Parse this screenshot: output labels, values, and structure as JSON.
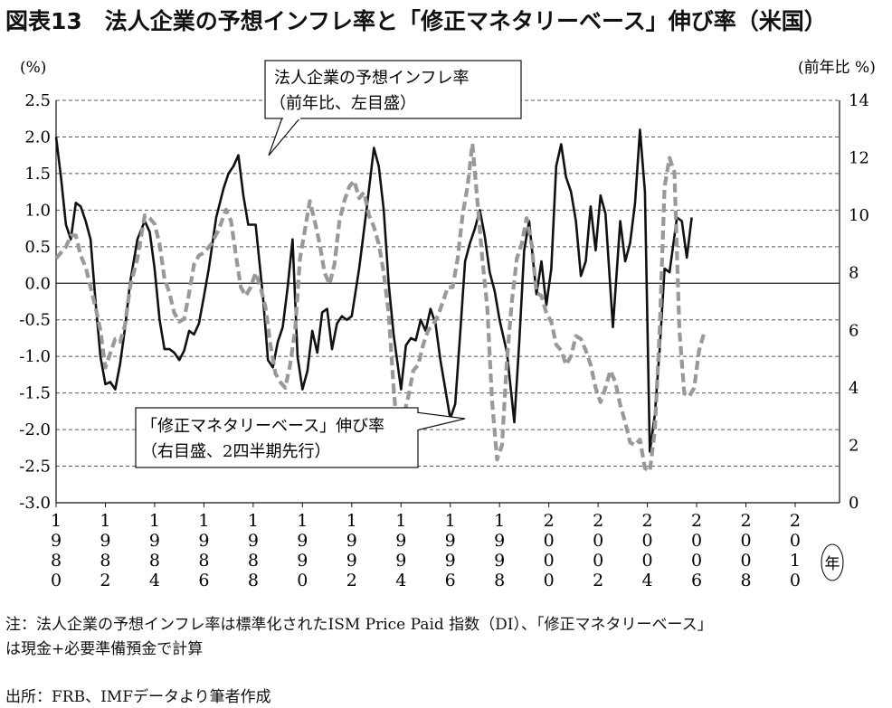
{
  "title": "図表13　法人企業の予想インフレ率と「修正マネタリーベース」伸び率（米国）",
  "left_unit": "(%)",
  "right_unit": "(前年比 %)",
  "year_unit": "年",
  "note_line1": "注：法人企業の予想インフレ率は標準化されたISM Price Paid 指数（DI）、「修正マネタリーベース」",
  "note_line2": "は現金+必要準備預金で計算",
  "source": "出所：FRB、IMFデータより筆者作成",
  "colors": {
    "series1": "#111111",
    "series2": "#999999",
    "grid": "#555555"
  },
  "chart_data": {
    "type": "line",
    "title": "法人企業の予想インフレ率と「修正マネタリーベース」伸び率（米国）",
    "x_ticks": [
      "1980",
      "1982",
      "1984",
      "1986",
      "1988",
      "1990",
      "1992",
      "1994",
      "1996",
      "1998",
      "2000",
      "2002",
      "2004",
      "2006",
      "2008",
      "2010"
    ],
    "xlim": [
      1980,
      2011.8
    ],
    "y_left": {
      "label": "(%)",
      "lim": [
        -3.0,
        2.5
      ],
      "ticks": [
        2.5,
        2.0,
        1.5,
        1.0,
        0.5,
        0.0,
        -0.5,
        -1.0,
        -1.5,
        -2.0,
        -2.5,
        -3.0
      ]
    },
    "y_right": {
      "label": "(前年比 %)",
      "lim": [
        0,
        14
      ],
      "ticks": [
        14,
        12,
        10,
        8,
        6,
        4,
        2,
        0
      ]
    },
    "grid": "dashed horizontal",
    "series": [
      {
        "name": "法人企業の予想インフレ率",
        "name_line2": "（前年比、左目盛）",
        "axis": "left",
        "style": "solid",
        "points": [
          [
            1980.0,
            2.0
          ],
          [
            1980.2,
            1.45
          ],
          [
            1980.4,
            0.8
          ],
          [
            1980.6,
            0.6
          ],
          [
            1980.8,
            1.1
          ],
          [
            1981.0,
            1.05
          ],
          [
            1981.2,
            0.85
          ],
          [
            1981.4,
            0.6
          ],
          [
            1981.6,
            -0.25
          ],
          [
            1981.8,
            -1.0
          ],
          [
            1982.0,
            -1.38
          ],
          [
            1982.2,
            -1.35
          ],
          [
            1982.4,
            -1.45
          ],
          [
            1982.6,
            -1.1
          ],
          [
            1982.8,
            -0.6
          ],
          [
            1983.0,
            0.0
          ],
          [
            1983.3,
            0.6
          ],
          [
            1983.6,
            0.85
          ],
          [
            1983.8,
            0.7
          ],
          [
            1984.0,
            0.2
          ],
          [
            1984.2,
            -0.5
          ],
          [
            1984.4,
            -0.9
          ],
          [
            1984.6,
            -0.9
          ],
          [
            1984.8,
            -0.95
          ],
          [
            1985.0,
            -1.05
          ],
          [
            1985.2,
            -0.92
          ],
          [
            1985.4,
            -0.65
          ],
          [
            1985.6,
            -0.7
          ],
          [
            1985.8,
            -0.55
          ],
          [
            1986.0,
            -0.18
          ],
          [
            1986.2,
            0.2
          ],
          [
            1986.5,
            0.9
          ],
          [
            1986.8,
            1.3
          ],
          [
            1987.0,
            1.5
          ],
          [
            1987.2,
            1.6
          ],
          [
            1987.4,
            1.75
          ],
          [
            1987.6,
            1.2
          ],
          [
            1987.8,
            0.8
          ],
          [
            1988.1,
            0.8
          ],
          [
            1988.4,
            -0.2
          ],
          [
            1988.6,
            -1.05
          ],
          [
            1988.8,
            -1.15
          ],
          [
            1989.0,
            -0.8
          ],
          [
            1989.2,
            -0.6
          ],
          [
            1989.4,
            -0.05
          ],
          [
            1989.6,
            0.6
          ],
          [
            1989.8,
            -1.0
          ],
          [
            1990.0,
            -1.45
          ],
          [
            1990.2,
            -1.2
          ],
          [
            1990.4,
            -0.65
          ],
          [
            1990.6,
            -0.95
          ],
          [
            1990.8,
            -0.4
          ],
          [
            1991.0,
            -0.35
          ],
          [
            1991.2,
            -0.9
          ],
          [
            1991.4,
            -0.55
          ],
          [
            1991.6,
            -0.45
          ],
          [
            1991.8,
            -0.5
          ],
          [
            1992.0,
            -0.45
          ],
          [
            1992.3,
            0.2
          ],
          [
            1992.6,
            1.0
          ],
          [
            1992.9,
            1.85
          ],
          [
            1993.1,
            1.6
          ],
          [
            1993.3,
            1.0
          ],
          [
            1993.5,
            0.0
          ],
          [
            1993.7,
            -0.7
          ],
          [
            1994.0,
            -1.45
          ],
          [
            1994.2,
            -0.85
          ],
          [
            1994.4,
            -0.75
          ],
          [
            1994.6,
            -0.78
          ],
          [
            1994.8,
            -0.5
          ],
          [
            1995.0,
            -0.65
          ],
          [
            1995.2,
            -0.35
          ],
          [
            1995.4,
            -0.55
          ],
          [
            1995.6,
            -1.05
          ],
          [
            1995.8,
            -1.45
          ],
          [
            1996.0,
            -1.85
          ],
          [
            1996.2,
            -1.65
          ],
          [
            1996.4,
            -0.7
          ],
          [
            1996.6,
            0.3
          ],
          [
            1996.8,
            0.55
          ],
          [
            1997.0,
            0.75
          ],
          [
            1997.2,
            1.0
          ],
          [
            1997.4,
            0.65
          ],
          [
            1997.6,
            0.15
          ],
          [
            1997.8,
            -0.1
          ],
          [
            1998.0,
            -0.5
          ],
          [
            1998.3,
            -0.95
          ],
          [
            1998.6,
            -1.9
          ],
          [
            1998.8,
            -0.8
          ],
          [
            1999.0,
            0.45
          ],
          [
            1999.2,
            0.85
          ],
          [
            1999.5,
            -0.15
          ],
          [
            1999.7,
            0.3
          ],
          [
            1999.9,
            -0.3
          ],
          [
            2000.1,
            0.2
          ],
          [
            2000.3,
            1.6
          ],
          [
            2000.5,
            1.9
          ],
          [
            2000.7,
            1.45
          ],
          [
            2000.9,
            1.25
          ],
          [
            2001.1,
            0.85
          ],
          [
            2001.3,
            0.1
          ],
          [
            2001.5,
            0.3
          ],
          [
            2001.7,
            1.05
          ],
          [
            2001.9,
            0.45
          ],
          [
            2002.1,
            1.2
          ],
          [
            2002.3,
            0.95
          ],
          [
            2002.6,
            -0.6
          ],
          [
            2002.9,
            0.85
          ],
          [
            2003.1,
            0.3
          ],
          [
            2003.3,
            0.55
          ],
          [
            2003.5,
            1.1
          ],
          [
            2003.7,
            2.1
          ],
          [
            2003.9,
            1.25
          ],
          [
            2004.1,
            -2.3
          ],
          [
            2004.3,
            -1.8
          ],
          [
            2004.5,
            -0.9
          ],
          [
            2004.7,
            0.2
          ],
          [
            2004.9,
            0.15
          ],
          [
            2005.2,
            0.9
          ],
          [
            2005.4,
            0.85
          ],
          [
            2005.6,
            0.35
          ],
          [
            2005.8,
            0.9
          ]
        ]
      },
      {
        "name": "「修正マネタリーベース」伸び率",
        "name_line2": "（右目盛、2四半期先行）",
        "axis": "right",
        "style": "dashed",
        "points": [
          [
            1980.0,
            8.5
          ],
          [
            1980.2,
            8.7
          ],
          [
            1980.4,
            8.9
          ],
          [
            1980.6,
            9.3
          ],
          [
            1980.8,
            9.3
          ],
          [
            1981.0,
            8.6
          ],
          [
            1981.2,
            8.2
          ],
          [
            1981.4,
            7.5
          ],
          [
            1981.6,
            6.8
          ],
          [
            1981.8,
            6.0
          ],
          [
            1982.0,
            4.7
          ],
          [
            1982.2,
            5.2
          ],
          [
            1982.4,
            5.7
          ],
          [
            1982.6,
            5.6
          ],
          [
            1982.8,
            6.2
          ],
          [
            1983.0,
            7.5
          ],
          [
            1983.3,
            8.5
          ],
          [
            1983.6,
            10.0
          ],
          [
            1983.8,
            9.9
          ],
          [
            1984.0,
            9.7
          ],
          [
            1984.2,
            9.0
          ],
          [
            1984.4,
            7.8
          ],
          [
            1984.6,
            7.3
          ],
          [
            1984.8,
            6.6
          ],
          [
            1985.0,
            6.3
          ],
          [
            1985.2,
            6.4
          ],
          [
            1985.4,
            7.3
          ],
          [
            1985.6,
            8.3
          ],
          [
            1985.8,
            8.6
          ],
          [
            1986.0,
            8.7
          ],
          [
            1986.3,
            9.0
          ],
          [
            1986.6,
            9.5
          ],
          [
            1986.9,
            10.2
          ],
          [
            1987.1,
            9.8
          ],
          [
            1987.3,
            8.6
          ],
          [
            1987.5,
            7.5
          ],
          [
            1987.7,
            7.2
          ],
          [
            1987.9,
            7.5
          ],
          [
            1988.1,
            8.0
          ],
          [
            1988.3,
            7.5
          ],
          [
            1988.5,
            6.8
          ],
          [
            1988.7,
            5.5
          ],
          [
            1988.9,
            4.5
          ],
          [
            1989.1,
            4.2
          ],
          [
            1989.3,
            4.0
          ],
          [
            1989.5,
            4.8
          ],
          [
            1989.7,
            6.0
          ],
          [
            1989.9,
            8.5
          ],
          [
            1990.1,
            9.5
          ],
          [
            1990.3,
            10.5
          ],
          [
            1990.5,
            9.8
          ],
          [
            1990.7,
            9.0
          ],
          [
            1990.9,
            8.0
          ],
          [
            1991.1,
            7.6
          ],
          [
            1991.3,
            8.3
          ],
          [
            1991.5,
            9.8
          ],
          [
            1991.7,
            10.5
          ],
          [
            1991.9,
            11.0
          ],
          [
            1992.1,
            11.2
          ],
          [
            1992.3,
            10.6
          ],
          [
            1992.5,
            10.8
          ],
          [
            1992.7,
            10.0
          ],
          [
            1992.9,
            9.6
          ],
          [
            1993.1,
            9.0
          ],
          [
            1993.3,
            8.0
          ],
          [
            1993.5,
            6.6
          ],
          [
            1993.7,
            4.0
          ],
          [
            1993.9,
            2.0
          ],
          [
            1994.1,
            3.0
          ],
          [
            1994.3,
            3.7
          ],
          [
            1994.5,
            4.6
          ],
          [
            1994.7,
            4.8
          ],
          [
            1994.9,
            5.5
          ],
          [
            1995.1,
            6.0
          ],
          [
            1995.3,
            6.2
          ],
          [
            1995.5,
            6.5
          ],
          [
            1995.7,
            7.0
          ],
          [
            1995.9,
            7.5
          ],
          [
            1996.1,
            7.5
          ],
          [
            1996.3,
            8.5
          ],
          [
            1996.5,
            10.0
          ],
          [
            1996.7,
            11.0
          ],
          [
            1996.9,
            12.5
          ],
          [
            1997.1,
            10.5
          ],
          [
            1997.3,
            8.5
          ],
          [
            1997.5,
            6.8
          ],
          [
            1997.7,
            3.5
          ],
          [
            1997.9,
            1.5
          ],
          [
            1998.1,
            2.0
          ],
          [
            1998.3,
            5.0
          ],
          [
            1998.5,
            7.0
          ],
          [
            1998.7,
            8.5
          ],
          [
            1998.9,
            9.0
          ],
          [
            1999.1,
            9.9
          ],
          [
            1999.3,
            9.0
          ],
          [
            1999.5,
            7.3
          ],
          [
            1999.7,
            7.2
          ],
          [
            1999.9,
            6.6
          ],
          [
            2000.1,
            6.3
          ],
          [
            2000.3,
            5.5
          ],
          [
            2000.5,
            5.3
          ],
          [
            2000.7,
            4.8
          ],
          [
            2000.9,
            5.1
          ],
          [
            2001.1,
            5.8
          ],
          [
            2001.3,
            5.7
          ],
          [
            2001.5,
            5.3
          ],
          [
            2001.7,
            4.8
          ],
          [
            2001.9,
            4.0
          ],
          [
            2002.1,
            3.5
          ],
          [
            2002.3,
            4.0
          ],
          [
            2002.5,
            4.6
          ],
          [
            2002.7,
            4.2
          ],
          [
            2002.9,
            3.4
          ],
          [
            2003.1,
            2.8
          ],
          [
            2003.3,
            2.1
          ],
          [
            2003.5,
            2.0
          ],
          [
            2003.7,
            2.2
          ],
          [
            2003.9,
            1.2
          ],
          [
            2004.1,
            1.1
          ],
          [
            2004.3,
            2.5
          ],
          [
            2004.5,
            6.0
          ],
          [
            2004.7,
            11.0
          ],
          [
            2004.9,
            12.0
          ],
          [
            2005.1,
            11.5
          ],
          [
            2005.3,
            6.0
          ],
          [
            2005.5,
            3.8
          ],
          [
            2005.7,
            3.7
          ],
          [
            2005.9,
            4.0
          ],
          [
            2006.1,
            5.3
          ],
          [
            2006.3,
            5.9
          ]
        ]
      }
    ]
  }
}
